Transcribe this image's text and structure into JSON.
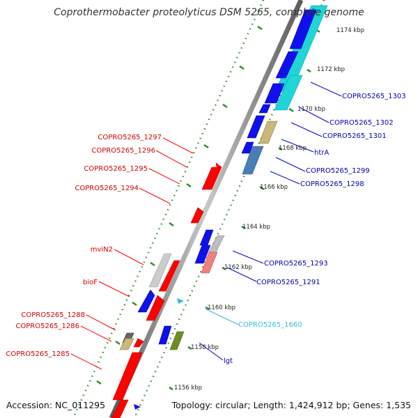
{
  "title": "Coprothermobacter proteolyticus DSM 5265, complete genome",
  "footer": {
    "accession": "Accession: NC_011295",
    "summary": "Topology: circular; Length: 1,424,912 bp; Genes: 1,535"
  },
  "colors": {
    "backbone": "#8a8a8a",
    "tick": "#2e8b2e",
    "forward_gene": "#ff0000",
    "reverse_gene": "#0000ff",
    "forward_label": "#cc0000",
    "reverse_label": "#0000aa",
    "ncrna_label": "#33bbdd",
    "cds_cyan": "#1fd5d5",
    "cds_steel": "#4a7fb5",
    "cds_grey": "#bdbdbd",
    "cds_khaki": "#c8b87a",
    "cds_olive": "#6b8e23",
    "cds_pink": "#f08080",
    "cds_dark": "#666666"
  },
  "kbp_ticks": [
    "1174 kbp",
    "1172 kbp",
    "1170 kbp",
    "1168 kbp",
    "1166 kbp",
    "1164 kbp",
    "1162 kbp",
    "1160 kbp",
    "1158 kbp",
    "1156 kbp"
  ],
  "forward_labels": [
    "COPRO5265_1297",
    "COPRO5265_1296",
    "COPRO5265_1295",
    "COPRO5265_1294",
    "mviN2",
    "bioF",
    "COPRO5265_1288",
    "COPRO5265_1286",
    "COPRO5265_1285"
  ],
  "reverse_labels": [
    "COPRO5265_1303",
    "COPRO5265_1302",
    "COPRO5265_1301",
    "htrA",
    "COPRO5265_1299",
    "COPRO5265_1298",
    "COPRO5265_1293",
    "COPRO5265_1291",
    "COPRO5265_1660",
    "lgt"
  ]
}
